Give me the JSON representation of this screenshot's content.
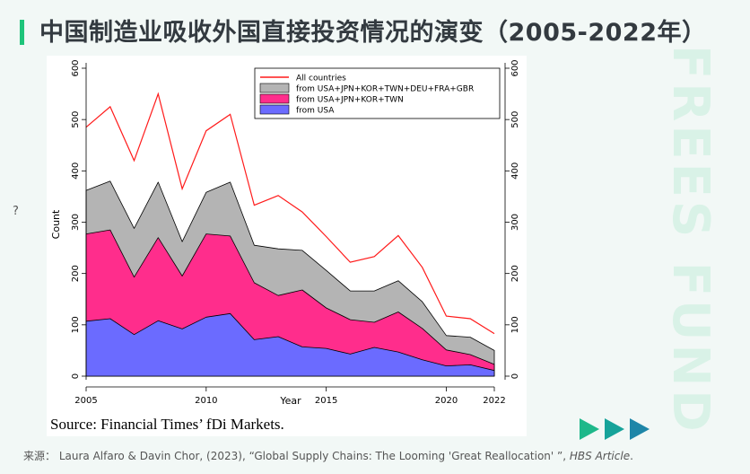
{
  "header": {
    "title": "中国制造业吸收外国直接投资情况的演变（2005-2022年）",
    "side_mark": "?"
  },
  "watermark": "FREES FUND",
  "footer": {
    "prefix": "来源：",
    "citation": "Laura Alfaro & Davin Chor, (2023), “Global Supply Chains: The Looming 'Great Reallocation' ”,",
    "journal": "HBS Article",
    "end": "."
  },
  "chart_data": {
    "type": "area",
    "source_note": "Source: Financial Times’ fDi Markets.",
    "xlabel": "Year",
    "ylabel": "Count",
    "xlim": [
      2005,
      2022
    ],
    "ylim": [
      0,
      600
    ],
    "x_ticks": [
      2005,
      2010,
      2015,
      2020,
      2022
    ],
    "y_ticks": [
      0,
      100,
      200,
      300,
      400,
      500,
      600
    ],
    "legend_position": "top-right",
    "x": [
      2005,
      2006,
      2007,
      2008,
      2009,
      2010,
      2011,
      2012,
      2013,
      2014,
      2015,
      2016,
      2017,
      2018,
      2019,
      2020,
      2021,
      2022
    ],
    "series": [
      {
        "name": "All countries",
        "kind": "line",
        "color": "#ff1a1a",
        "values": [
          485,
          525,
          420,
          550,
          365,
          478,
          510,
          333,
          352,
          320,
          272,
          222,
          233,
          274,
          212,
          117,
          112,
          83
        ]
      },
      {
        "name": "from USA+JPN+KOR+TWN+DEU+FRA+GBR",
        "kind": "area",
        "color": "#b4b4b4",
        "values": [
          362,
          380,
          288,
          378,
          262,
          358,
          378,
          255,
          248,
          245,
          206,
          166,
          166,
          186,
          145,
          79,
          76,
          50
        ]
      },
      {
        "name": "from USA+JPN+KOR+TWN",
        "kind": "area",
        "color": "#ff2d8c",
        "values": [
          277,
          285,
          193,
          270,
          195,
          277,
          273,
          182,
          157,
          168,
          133,
          110,
          105,
          125,
          93,
          51,
          42,
          23
        ]
      },
      {
        "name": "from USA",
        "kind": "area",
        "color": "#6b6bff",
        "values": [
          107,
          112,
          81,
          108,
          92,
          115,
          122,
          71,
          77,
          57,
          54,
          43,
          56,
          47,
          32,
          20,
          22,
          11
        ]
      }
    ]
  }
}
